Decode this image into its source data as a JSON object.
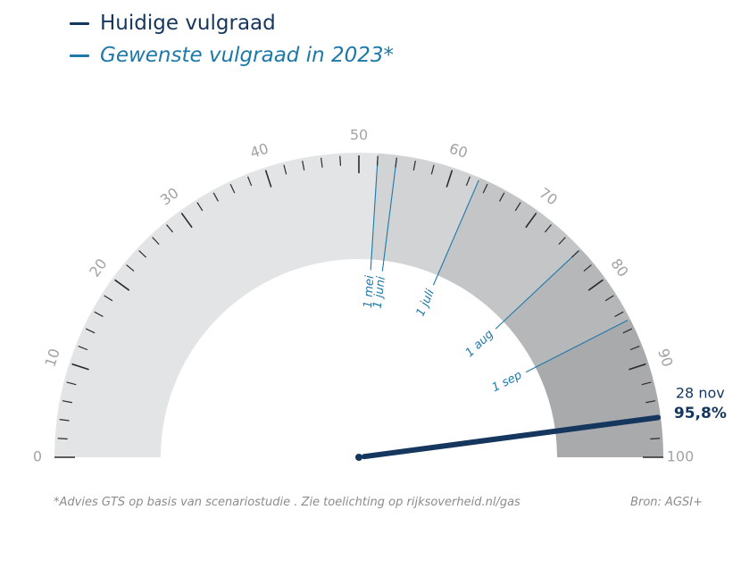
{
  "legend": {
    "current_label": "Huidige vulgraad",
    "target_label": "Gewenste vulgraad in 2023*"
  },
  "chart_data": {
    "type": "gauge",
    "min": 0,
    "max": 100,
    "tick_labels": [
      "0",
      "10",
      "20",
      "30",
      "40",
      "50",
      "60",
      "70",
      "80",
      "90",
      "100"
    ],
    "minor_tick_step": 2,
    "current": {
      "value": 95.8,
      "date_label": "28 nov",
      "value_label": "95,8%"
    },
    "targets": [
      {
        "date": "1 mei",
        "value": 52
      },
      {
        "date": "1 juni",
        "value": 54
      },
      {
        "date": "1 juli",
        "value": 63
      },
      {
        "date": "1 aug",
        "value": 76
      },
      {
        "date": "1 sep",
        "value": 85
      }
    ],
    "bands": [
      {
        "from": 0,
        "to": 52,
        "color": "#e3e4e5"
      },
      {
        "from": 52,
        "to": 63,
        "color": "#d2d3d5"
      },
      {
        "from": 63,
        "to": 76,
        "color": "#c4c5c7"
      },
      {
        "from": 76,
        "to": 85,
        "color": "#b6b7b9"
      },
      {
        "from": 85,
        "to": 100,
        "color": "#a9aaac"
      }
    ]
  },
  "colors": {
    "current": "#15375e",
    "target": "#1d79a8",
    "tick": "#2b2b2b",
    "tick_label": "#a3a3a3"
  },
  "footnote": "*Advies GTS op basis van scenariostudie . Zie toelichting op rijksoverheid.nl/gas",
  "source": "Bron: AGSI+"
}
